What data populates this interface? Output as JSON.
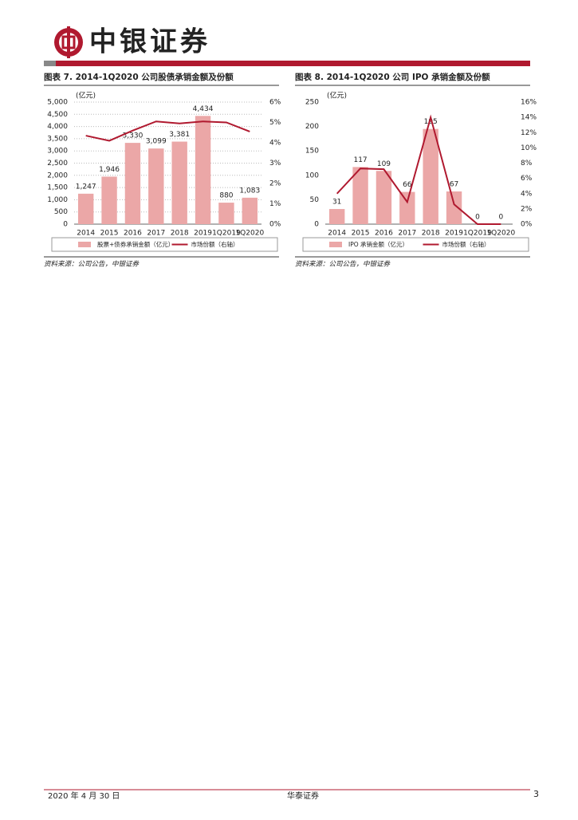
{
  "header": {
    "logo_text": "中银证券"
  },
  "chart_data": [
    {
      "type": "bar",
      "title": "图表 7. 2014-1Q2020 公司股债承销金额及份额",
      "unit_label": "(亿元)",
      "categories": [
        "2014",
        "2015",
        "2016",
        "2017",
        "2018",
        "2019",
        "1Q2019",
        "1Q2020"
      ],
      "series": [
        {
          "name": "股票+债券承销金额（亿元）",
          "type": "bar",
          "color": "#eba7a7",
          "values": [
            1247,
            1946,
            3330,
            3099,
            3381,
            4434,
            880,
            1083
          ],
          "value_labels": [
            "1,247",
            "1,946",
            "3,330",
            "3,099",
            "3,381",
            "4,434",
            "880",
            "1,083"
          ]
        },
        {
          "name": "市场份额（右轴）",
          "type": "line",
          "axis": "y2",
          "color": "#b0192f",
          "values": [
            4.35,
            4.1,
            4.6,
            5.05,
            4.95,
            5.05,
            5.0,
            4.55
          ]
        }
      ],
      "ylim": [
        0,
        5000
      ],
      "yticks": [
        0,
        500,
        {
          "value": 1000,
          "label": "1,000"
        },
        {
          "value": 1500,
          "label": "1,500"
        },
        {
          "value": 2000,
          "label": "2,000"
        },
        {
          "value": 2500,
          "label": "2,500"
        },
        {
          "value": 3000,
          "label": "3,000"
        },
        {
          "value": 3500,
          "label": "3,500"
        },
        {
          "value": 4000,
          "label": "4,000"
        },
        {
          "value": 4500,
          "label": "4,500"
        },
        {
          "value": 5000,
          "label": "5,000"
        }
      ],
      "y2lim": [
        0,
        6
      ],
      "y2ticks": [
        {
          "value": 0,
          "label": "0%"
        },
        {
          "value": 1,
          "label": "1%"
        },
        {
          "value": 2,
          "label": "2%"
        },
        {
          "value": 3,
          "label": "3%"
        },
        {
          "value": 4,
          "label": "4%"
        },
        {
          "value": 5,
          "label": "5%"
        },
        {
          "value": 6,
          "label": "6%"
        }
      ],
      "grid": true,
      "legend": "bottom",
      "source": "资料来源：公司公告，中银证券"
    },
    {
      "type": "bar",
      "title": "图表 8. 2014-1Q2020 公司 IPO 承销金额及份额",
      "unit_label": "(亿元)",
      "categories": [
        "2014",
        "2015",
        "2016",
        "2017",
        "2018",
        "2019",
        "1Q2019",
        "1Q2020"
      ],
      "series": [
        {
          "name": "IPO 承销金额（亿元）",
          "type": "bar",
          "color": "#eba7a7",
          "values": [
            31,
            117,
            109,
            66,
            195,
            67,
            0,
            0
          ]
        },
        {
          "name": "市场份额（右轴）",
          "type": "line",
          "axis": "y2",
          "color": "#b0192f",
          "values": [
            4.0,
            7.3,
            7.2,
            2.9,
            14.0,
            2.6,
            0,
            0
          ]
        }
      ],
      "ylim": [
        0,
        250
      ],
      "yticks": [
        0,
        50,
        100,
        150,
        200,
        250
      ],
      "y2lim": [
        0,
        16
      ],
      "y2ticks": [
        {
          "value": 0,
          "label": "0%"
        },
        {
          "value": 2,
          "label": "2%"
        },
        {
          "value": 4,
          "label": "4%"
        },
        {
          "value": 6,
          "label": "6%"
        },
        {
          "value": 8,
          "label": "8%"
        },
        {
          "value": 10,
          "label": "10%"
        },
        {
          "value": 12,
          "label": "12%"
        },
        {
          "value": 14,
          "label": "14%"
        },
        {
          "value": 16,
          "label": "16%"
        }
      ],
      "grid": false,
      "legend": "bottom",
      "source": "资料来源：公司公告，中银证券"
    }
  ],
  "footer": {
    "date": "2020 年 4 月 30 日",
    "company": "华泰证券",
    "page": "3"
  }
}
